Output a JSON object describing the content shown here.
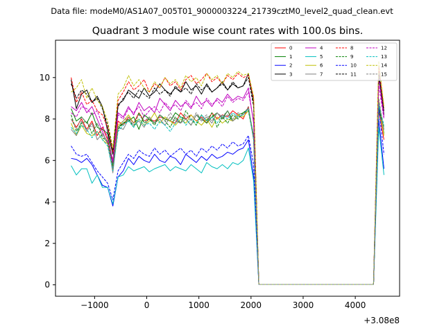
{
  "figure": {
    "suptitle": "Data file: modeM0/AS1A07_005T01_9000003224_21739cztM0_level2_quad_clean.evt",
    "title": "Quadrant 3 module wise count rates with 100.0s bins.",
    "x_offset_label": "+3.08e8"
  },
  "chart_data": {
    "type": "line",
    "title": "Quadrant 3 module wise count rates with 100.0s bins.",
    "xlabel": "",
    "ylabel": "",
    "x_offset": 308000000,
    "xlim": [
      -1750,
      4850
    ],
    "ylim": [
      -0.55,
      11.8
    ],
    "xticks": [
      -1000,
      0,
      1000,
      2000,
      3000,
      4000
    ],
    "xtick_labels": [
      "−1000",
      "0",
      "1000",
      "2000",
      "3000",
      "4000"
    ],
    "yticks": [
      0,
      2,
      4,
      6,
      8,
      10
    ],
    "ytick_labels": [
      "0",
      "2",
      "4",
      "6",
      "8",
      "10"
    ],
    "grid": false,
    "legend_position": "top-right",
    "legend_columns": 4,
    "x": [
      -1450,
      -1350,
      -1250,
      -1150,
      -1050,
      -950,
      -850,
      -750,
      -650,
      -550,
      -450,
      -350,
      -250,
      -150,
      -50,
      50,
      150,
      250,
      350,
      450,
      550,
      650,
      750,
      850,
      950,
      1050,
      1150,
      1250,
      1350,
      1450,
      1550,
      1650,
      1750,
      1850,
      1950,
      2050,
      2150,
      2250,
      2350,
      2450,
      2550,
      2650,
      2750,
      2850,
      2950,
      3050,
      3150,
      3250,
      3350,
      3450,
      3550,
      3650,
      3750,
      3850,
      3950,
      4050,
      4150,
      4250,
      4350,
      4450,
      4550
    ],
    "series": [
      {
        "name": "0",
        "color": "#ff0000",
        "dash": "solid",
        "values": [
          8.0,
          7.6,
          8.0,
          7.5,
          7.9,
          7.2,
          7.6,
          7.0,
          6.0,
          7.9,
          7.7,
          8.1,
          7.8,
          8.3,
          7.9,
          8.0,
          7.9,
          8.1,
          8.0,
          7.9,
          7.8,
          8.3,
          8.0,
          8.2,
          7.9,
          8.1,
          7.8,
          8.3,
          8.0,
          8.2,
          8.1,
          8.4,
          8.2,
          8.0,
          8.6,
          7.0,
          0.02,
          0.02,
          0.02,
          0.02,
          0.02,
          0.02,
          0.02,
          0.02,
          0.02,
          0.02,
          0.02,
          0.02,
          0.02,
          0.02,
          0.02,
          0.02,
          0.02,
          0.02,
          0.02,
          0.02,
          0.02,
          0.02,
          0.02,
          8.4,
          7.0
        ]
      },
      {
        "name": "1",
        "color": "#008000",
        "dash": "solid",
        "values": [
          8.5,
          7.9,
          8.1,
          7.8,
          8.3,
          7.6,
          7.5,
          7.3,
          5.8,
          7.6,
          7.8,
          7.9,
          8.1,
          7.5,
          8.2,
          8.0,
          7.8,
          8.2,
          8.0,
          7.9,
          8.3,
          8.1,
          8.0,
          7.7,
          8.2,
          8.0,
          7.8,
          8.1,
          8.3,
          8.0,
          8.4,
          7.9,
          8.2,
          8.3,
          8.5,
          7.2,
          0.02,
          0.02,
          0.02,
          0.02,
          0.02,
          0.02,
          0.02,
          0.02,
          0.02,
          0.02,
          0.02,
          0.02,
          0.02,
          0.02,
          0.02,
          0.02,
          0.02,
          0.02,
          0.02,
          0.02,
          0.02,
          0.02,
          0.02,
          8.6,
          7.3
        ]
      },
      {
        "name": "2",
        "color": "#0000ff",
        "dash": "solid",
        "values": [
          6.1,
          6.05,
          5.9,
          6.1,
          5.8,
          5.3,
          4.8,
          4.7,
          3.8,
          5.2,
          5.5,
          6.1,
          5.8,
          6.2,
          6.0,
          5.9,
          6.3,
          6.0,
          5.9,
          6.2,
          6.1,
          5.8,
          6.3,
          6.1,
          5.9,
          6.2,
          6.0,
          6.3,
          6.1,
          6.2,
          6.4,
          6.3,
          6.5,
          6.6,
          7.0,
          5.2,
          0.02,
          0.02,
          0.02,
          0.02,
          0.02,
          0.02,
          0.02,
          0.02,
          0.02,
          0.02,
          0.02,
          0.02,
          0.02,
          0.02,
          0.02,
          0.02,
          0.02,
          0.02,
          0.02,
          0.02,
          0.02,
          0.02,
          0.02,
          8.0,
          5.6
        ]
      },
      {
        "name": "3",
        "color": "#000000",
        "dash": "solid",
        "values": [
          9.9,
          8.5,
          9.2,
          9.4,
          8.8,
          9.1,
          8.6,
          7.4,
          6.3,
          8.7,
          8.9,
          9.4,
          9.2,
          9.0,
          9.5,
          9.1,
          9.3,
          9.7,
          9.4,
          9.2,
          9.5,
          9.3,
          9.8,
          9.4,
          9.6,
          9.2,
          9.7,
          9.3,
          9.5,
          9.8,
          9.4,
          9.7,
          9.5,
          9.6,
          10.2,
          8.8,
          0.02,
          0.02,
          0.02,
          0.02,
          0.02,
          0.02,
          0.02,
          0.02,
          0.02,
          0.02,
          0.02,
          0.02,
          0.02,
          0.02,
          0.02,
          0.02,
          0.02,
          0.02,
          0.02,
          0.02,
          0.02,
          0.02,
          0.02,
          10.3,
          8.2
        ]
      },
      {
        "name": "4",
        "color": "#bf00bf",
        "dash": "solid",
        "values": [
          8.6,
          8.4,
          8.8,
          8.3,
          8.6,
          8.0,
          7.4,
          6.8,
          5.9,
          8.3,
          8.1,
          8.6,
          8.2,
          8.8,
          8.4,
          8.6,
          8.3,
          9.0,
          8.7,
          8.4,
          8.9,
          8.6,
          8.8,
          8.5,
          9.1,
          8.7,
          8.9,
          8.6,
          9.0,
          8.8,
          9.2,
          8.9,
          9.1,
          9.0,
          9.5,
          7.8,
          0.02,
          0.02,
          0.02,
          0.02,
          0.02,
          0.02,
          0.02,
          0.02,
          0.02,
          0.02,
          0.02,
          0.02,
          0.02,
          0.02,
          0.02,
          0.02,
          0.02,
          0.02,
          0.02,
          0.02,
          0.02,
          0.02,
          0.02,
          10.0,
          8.1
        ]
      },
      {
        "name": "5",
        "color": "#00bfbf",
        "dash": "solid",
        "values": [
          5.75,
          5.3,
          5.6,
          5.6,
          4.9,
          5.3,
          4.7,
          4.7,
          3.9,
          5.2,
          5.3,
          5.7,
          5.5,
          5.6,
          5.7,
          5.45,
          5.6,
          5.7,
          5.8,
          5.5,
          5.7,
          5.6,
          5.5,
          5.8,
          5.6,
          5.4,
          5.9,
          5.7,
          5.6,
          5.8,
          5.6,
          5.9,
          5.8,
          6.0,
          6.6,
          5.0,
          0.02,
          0.02,
          0.02,
          0.02,
          0.02,
          0.02,
          0.02,
          0.02,
          0.02,
          0.02,
          0.02,
          0.02,
          0.02,
          0.02,
          0.02,
          0.02,
          0.02,
          0.02,
          0.02,
          0.02,
          0.02,
          0.02,
          0.02,
          7.6,
          5.3
        ]
      },
      {
        "name": "6",
        "color": "#bfbf00",
        "dash": "solid",
        "values": [
          7.8,
          7.2,
          7.7,
          7.3,
          7.2,
          7.4,
          7.0,
          6.8,
          5.5,
          7.7,
          7.9,
          8.2,
          7.8,
          8.0,
          7.7,
          7.9,
          8.3,
          7.8,
          8.1,
          7.9,
          7.7,
          8.0,
          7.8,
          8.2,
          7.9,
          7.7,
          8.0,
          7.6,
          8.1,
          7.8,
          8.0,
          7.9,
          8.2,
          8.1,
          8.4,
          7.1,
          0.02,
          0.02,
          0.02,
          0.02,
          0.02,
          0.02,
          0.02,
          0.02,
          0.02,
          0.02,
          0.02,
          0.02,
          0.02,
          0.02,
          0.02,
          0.02,
          0.02,
          0.02,
          0.02,
          0.02,
          0.02,
          0.02,
          0.02,
          8.9,
          7.2
        ]
      },
      {
        "name": "7",
        "color": "#808080",
        "dash": "solid",
        "values": [
          7.5,
          7.2,
          7.9,
          7.4,
          7.8,
          7.0,
          7.3,
          6.9,
          5.4,
          7.6,
          7.5,
          8.0,
          7.7,
          7.9,
          7.6,
          8.1,
          7.8,
          8.0,
          7.7,
          8.1,
          7.9,
          7.8,
          8.0,
          7.7,
          8.2,
          7.9,
          8.1,
          7.8,
          8.3,
          8.0,
          8.2,
          7.9,
          8.1,
          8.2,
          8.5,
          7.0,
          0.02,
          0.02,
          0.02,
          0.02,
          0.02,
          0.02,
          0.02,
          0.02,
          0.02,
          0.02,
          0.02,
          0.02,
          0.02,
          0.02,
          0.02,
          0.02,
          0.02,
          0.02,
          0.02,
          0.02,
          0.02,
          0.02,
          0.02,
          8.8,
          7.5
        ]
      },
      {
        "name": "8",
        "color": "#ff0000",
        "dash": "dashed",
        "values": [
          10.0,
          8.8,
          9.3,
          8.7,
          8.9,
          8.4,
          8.2,
          7.6,
          6.4,
          8.9,
          9.3,
          9.8,
          9.4,
          9.6,
          9.9,
          9.3,
          9.7,
          9.5,
          10.0,
          9.6,
          9.8,
          9.4,
          9.9,
          10.1,
          9.7,
          9.9,
          10.2,
          9.8,
          10.0,
          9.7,
          10.1,
          9.9,
          10.2,
          10.0,
          10.1,
          9.0,
          0.02,
          0.02,
          0.02,
          0.02,
          0.02,
          0.02,
          0.02,
          0.02,
          0.02,
          0.02,
          0.02,
          0.02,
          0.02,
          0.02,
          0.02,
          0.02,
          0.02,
          0.02,
          0.02,
          0.02,
          0.02,
          0.02,
          0.02,
          10.6,
          8.5
        ]
      },
      {
        "name": "9",
        "color": "#008000",
        "dash": "dashed",
        "values": [
          8.2,
          7.4,
          7.8,
          7.9,
          7.3,
          7.8,
          7.1,
          6.9,
          5.7,
          7.5,
          7.8,
          8.0,
          7.6,
          8.3,
          7.8,
          8.0,
          7.7,
          8.2,
          7.9,
          7.6,
          8.1,
          7.8,
          8.4,
          8.0,
          7.7,
          8.2,
          7.9,
          8.3,
          7.6,
          8.1,
          7.8,
          8.2,
          8.0,
          8.3,
          8.4,
          7.1,
          0.02,
          0.02,
          0.02,
          0.02,
          0.02,
          0.02,
          0.02,
          0.02,
          0.02,
          0.02,
          0.02,
          0.02,
          0.02,
          0.02,
          0.02,
          0.02,
          0.02,
          0.02,
          0.02,
          0.02,
          0.02,
          0.02,
          0.02,
          8.5,
          7.6
        ]
      },
      {
        "name": "10",
        "color": "#0000ff",
        "dash": "dashed",
        "values": [
          6.7,
          6.3,
          6.2,
          6.3,
          5.9,
          5.5,
          5.2,
          4.9,
          4.1,
          5.5,
          5.9,
          6.3,
          6.1,
          6.5,
          6.3,
          6.2,
          6.6,
          6.3,
          6.5,
          6.2,
          6.4,
          6.6,
          6.3,
          6.5,
          6.2,
          6.6,
          6.4,
          6.7,
          6.5,
          6.8,
          6.6,
          6.9,
          6.7,
          6.8,
          7.2,
          5.8,
          0.02,
          0.02,
          0.02,
          0.02,
          0.02,
          0.02,
          0.02,
          0.02,
          0.02,
          0.02,
          0.02,
          0.02,
          0.02,
          0.02,
          0.02,
          0.02,
          0.02,
          0.02,
          0.02,
          0.02,
          0.02,
          0.02,
          0.02,
          8.6,
          6.3
        ]
      },
      {
        "name": "11",
        "color": "#000000",
        "dash": "dashed",
        "values": [
          9.7,
          9.0,
          9.4,
          9.2,
          8.8,
          9.0,
          8.5,
          7.7,
          6.5,
          8.6,
          9.0,
          9.3,
          9.0,
          9.4,
          9.2,
          9.0,
          9.5,
          9.2,
          9.4,
          9.1,
          9.6,
          9.3,
          9.5,
          9.2,
          9.7,
          9.4,
          9.6,
          9.3,
          9.5,
          9.7,
          9.4,
          9.8,
          9.5,
          9.6,
          10.0,
          8.6,
          0.02,
          0.02,
          0.02,
          0.02,
          0.02,
          0.02,
          0.02,
          0.02,
          0.02,
          0.02,
          0.02,
          0.02,
          0.02,
          0.02,
          0.02,
          0.02,
          0.02,
          0.02,
          0.02,
          0.02,
          0.02,
          0.02,
          0.02,
          10.1,
          8.4
        ]
      },
      {
        "name": "12",
        "color": "#bf00bf",
        "dash": "dashed",
        "values": [
          8.3,
          8.1,
          8.6,
          8.5,
          8.2,
          8.4,
          7.7,
          7.1,
          6.0,
          8.2,
          8.0,
          8.5,
          8.3,
          8.6,
          8.1,
          8.4,
          8.6,
          8.3,
          8.8,
          8.5,
          8.7,
          8.4,
          8.9,
          8.6,
          8.8,
          8.5,
          9.0,
          8.7,
          8.9,
          8.6,
          9.1,
          8.8,
          9.0,
          8.9,
          9.3,
          7.9,
          0.02,
          0.02,
          0.02,
          0.02,
          0.02,
          0.02,
          0.02,
          0.02,
          0.02,
          0.02,
          0.02,
          0.02,
          0.02,
          0.02,
          0.02,
          0.02,
          0.02,
          0.02,
          0.02,
          0.02,
          0.02,
          0.02,
          0.02,
          9.6,
          8.0
        ]
      },
      {
        "name": "13",
        "color": "#00bfbf",
        "dash": "dashed",
        "values": [
          7.6,
          7.3,
          7.7,
          7.5,
          7.1,
          7.4,
          7.0,
          6.7,
          5.5,
          7.4,
          7.7,
          7.9,
          7.6,
          8.0,
          7.7,
          7.8,
          7.5,
          7.9,
          7.7,
          7.4,
          7.8,
          8.1,
          7.7,
          8.0,
          7.8,
          8.2,
          7.9,
          8.1,
          7.8,
          8.2,
          8.0,
          8.3,
          8.1,
          8.2,
          8.5,
          7.0,
          0.02,
          0.02,
          0.02,
          0.02,
          0.02,
          0.02,
          0.02,
          0.02,
          0.02,
          0.02,
          0.02,
          0.02,
          0.02,
          0.02,
          0.02,
          0.02,
          0.02,
          0.02,
          0.02,
          0.02,
          0.02,
          0.02,
          0.02,
          8.7,
          7.7
        ]
      },
      {
        "name": "14",
        "color": "#bfbf00",
        "dash": "dashed",
        "values": [
          9.3,
          9.5,
          9.9,
          9.0,
          9.5,
          8.9,
          8.6,
          7.9,
          6.6,
          9.2,
          9.5,
          10.1,
          9.6,
          9.9,
          9.5,
          9.3,
          9.8,
          9.5,
          10.0,
          9.7,
          9.9,
          9.5,
          10.1,
          9.8,
          10.0,
          9.6,
          10.2,
          9.9,
          10.1,
          9.7,
          10.2,
          10.0,
          10.3,
          10.1,
          10.2,
          9.1,
          0.02,
          0.02,
          0.02,
          0.02,
          0.02,
          0.02,
          0.02,
          0.02,
          0.02,
          0.02,
          0.02,
          0.02,
          0.02,
          0.02,
          0.02,
          0.02,
          0.02,
          0.02,
          0.02,
          0.02,
          0.02,
          0.02,
          0.02,
          10.8,
          8.6
        ]
      },
      {
        "name": "15",
        "color": "#808080",
        "dash": "dashed",
        "values": [
          8.0,
          7.5,
          8.1,
          7.8,
          7.6,
          7.8,
          7.2,
          6.9,
          5.6,
          7.6,
          7.9,
          8.1,
          7.8,
          8.2,
          7.9,
          8.1,
          7.8,
          8.2,
          7.9,
          8.3,
          8.0,
          7.8,
          8.2,
          7.9,
          8.3,
          8.0,
          8.2,
          7.9,
          8.3,
          8.1,
          8.4,
          8.0,
          8.3,
          8.2,
          8.6,
          7.1,
          0.02,
          0.02,
          0.02,
          0.02,
          0.02,
          0.02,
          0.02,
          0.02,
          0.02,
          0.02,
          0.02,
          0.02,
          0.02,
          0.02,
          0.02,
          0.02,
          0.02,
          0.02,
          0.02,
          0.02,
          0.02,
          0.02,
          0.02,
          9.0,
          7.4
        ]
      }
    ]
  }
}
